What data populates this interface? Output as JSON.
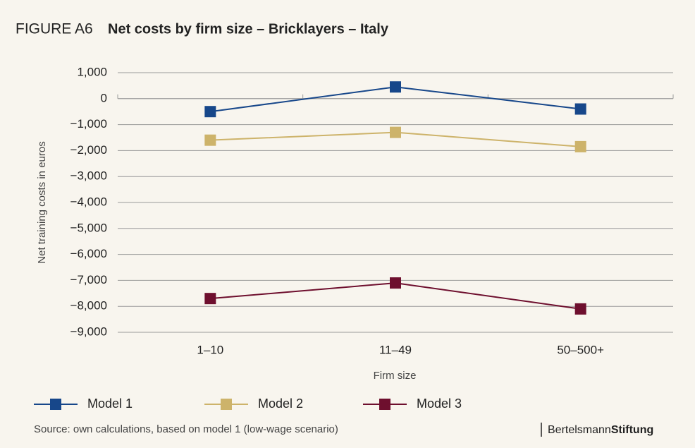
{
  "chart_data": {
    "type": "line",
    "figure_label": "FIGURE A6",
    "title": "Net costs by firm size – Bricklayers – Italy",
    "categories": [
      "1–10",
      "11–49",
      "50–500+"
    ],
    "series": [
      {
        "name": "Model 1",
        "color": "#17478a",
        "values": [
          -500,
          450,
          -400
        ]
      },
      {
        "name": "Model 2",
        "color": "#cdb36a",
        "values": [
          -1600,
          -1300,
          -1850
        ]
      },
      {
        "name": "Model 3",
        "color": "#6e0f2e",
        "values": [
          -7700,
          -7100,
          -8100
        ]
      }
    ],
    "ylim": [
      -9000,
      1000
    ],
    "yticks": [
      {
        "value": -9000,
        "label": "−9,000"
      },
      {
        "value": -8000,
        "label": "−8,000"
      },
      {
        "value": -7000,
        "label": "−7,000"
      },
      {
        "value": -6000,
        "label": "−6,000"
      },
      {
        "value": -5000,
        "label": "−5,000"
      },
      {
        "value": -4000,
        "label": "−4,000"
      },
      {
        "value": -3000,
        "label": "−3,000"
      },
      {
        "value": -2000,
        "label": "−2,000"
      },
      {
        "value": -1000,
        "label": "−1,000"
      },
      0,
      {
        "value": 1000,
        "label": "1,000"
      }
    ],
    "grid": true,
    "ylabel": "Net training costs in euros",
    "xlabel": "Firm size",
    "source": "Source: own calculations, based on model 1 (low-wage scenario)",
    "brand": [
      "Bertelsmann",
      "Stiftung"
    ]
  }
}
